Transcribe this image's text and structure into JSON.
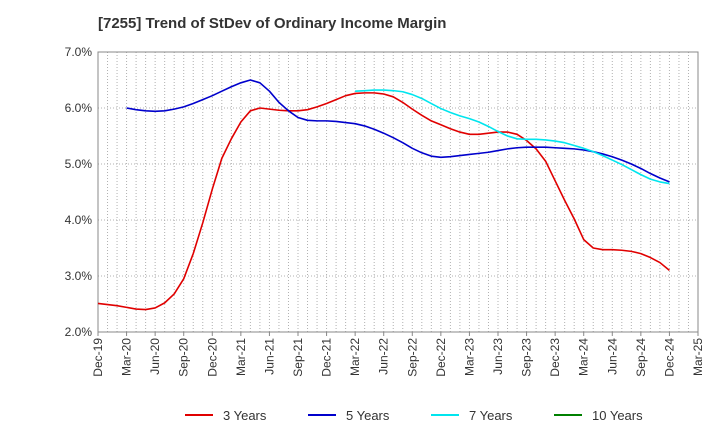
{
  "chart_data": {
    "type": "line",
    "title": "[7255]  Trend of StDev of Ordinary Income Margin",
    "xlabel": "",
    "ylabel": "",
    "ylim": [
      2.0,
      7.0
    ],
    "y_ticks": [
      "2.0%",
      "3.0%",
      "4.0%",
      "5.0%",
      "6.0%",
      "7.0%"
    ],
    "x_ticks": [
      "Dec-19",
      "Mar-20",
      "Jun-20",
      "Sep-20",
      "Dec-20",
      "Mar-21",
      "Jun-21",
      "Sep-21",
      "Dec-21",
      "Mar-22",
      "Jun-22",
      "Sep-22",
      "Dec-22",
      "Mar-23",
      "Jun-23",
      "Sep-23",
      "Dec-23",
      "Mar-24",
      "Jun-24",
      "Sep-24",
      "Dec-24",
      "Mar-25"
    ],
    "grid": true,
    "legend_position": "bottom",
    "series": [
      {
        "name": "3 Years",
        "color": "#e00000",
        "points": [
          [
            "Dec-19",
            2.51
          ],
          [
            "Jan-20",
            2.49
          ],
          [
            "Feb-20",
            2.47
          ],
          [
            "Mar-20",
            2.44
          ],
          [
            "Apr-20",
            2.41
          ],
          [
            "May-20",
            2.4
          ],
          [
            "Jun-20",
            2.43
          ],
          [
            "Jul-20",
            2.52
          ],
          [
            "Aug-20",
            2.68
          ],
          [
            "Sep-20",
            2.95
          ],
          [
            "Oct-20",
            3.4
          ],
          [
            "Nov-20",
            3.95
          ],
          [
            "Dec-20",
            4.55
          ],
          [
            "Jan-21",
            5.1
          ],
          [
            "Feb-21",
            5.45
          ],
          [
            "Mar-21",
            5.75
          ],
          [
            "Apr-21",
            5.95
          ],
          [
            "May-21",
            6.0
          ],
          [
            "Jun-21",
            5.98
          ],
          [
            "Jul-21",
            5.96
          ],
          [
            "Aug-21",
            5.95
          ],
          [
            "Sep-21",
            5.95
          ],
          [
            "Oct-21",
            5.97
          ],
          [
            "Nov-21",
            6.02
          ],
          [
            "Dec-21",
            6.08
          ],
          [
            "Jan-22",
            6.15
          ],
          [
            "Feb-22",
            6.22
          ],
          [
            "Mar-22",
            6.26
          ],
          [
            "Apr-22",
            6.27
          ],
          [
            "May-22",
            6.27
          ],
          [
            "Jun-22",
            6.25
          ],
          [
            "Jul-22",
            6.2
          ],
          [
            "Aug-22",
            6.1
          ],
          [
            "Sep-22",
            5.98
          ],
          [
            "Oct-22",
            5.87
          ],
          [
            "Nov-22",
            5.77
          ],
          [
            "Dec-22",
            5.7
          ],
          [
            "Jan-23",
            5.63
          ],
          [
            "Feb-23",
            5.57
          ],
          [
            "Mar-23",
            5.53
          ],
          [
            "Apr-23",
            5.53
          ],
          [
            "May-23",
            5.55
          ],
          [
            "Jun-23",
            5.57
          ],
          [
            "Jul-23",
            5.57
          ],
          [
            "Aug-23",
            5.53
          ],
          [
            "Sep-23",
            5.42
          ],
          [
            "Oct-23",
            5.27
          ],
          [
            "Nov-23",
            5.05
          ],
          [
            "Dec-23",
            4.7
          ],
          [
            "Jan-24",
            4.35
          ],
          [
            "Feb-24",
            4.02
          ],
          [
            "Mar-24",
            3.65
          ],
          [
            "Apr-24",
            3.5
          ],
          [
            "May-24",
            3.47
          ],
          [
            "Jun-24",
            3.47
          ],
          [
            "Jul-24",
            3.46
          ],
          [
            "Aug-24",
            3.44
          ],
          [
            "Sep-24",
            3.4
          ],
          [
            "Oct-24",
            3.33
          ],
          [
            "Nov-24",
            3.24
          ],
          [
            "Dec-24",
            3.1
          ]
        ]
      },
      {
        "name": "5 Years",
        "color": "#0000cc",
        "points": [
          [
            "Mar-20",
            6.0
          ],
          [
            "Apr-20",
            5.97
          ],
          [
            "May-20",
            5.95
          ],
          [
            "Jun-20",
            5.94
          ],
          [
            "Jul-20",
            5.95
          ],
          [
            "Aug-20",
            5.98
          ],
          [
            "Sep-20",
            6.02
          ],
          [
            "Oct-20",
            6.08
          ],
          [
            "Nov-20",
            6.15
          ],
          [
            "Dec-20",
            6.22
          ],
          [
            "Jan-21",
            6.3
          ],
          [
            "Feb-21",
            6.38
          ],
          [
            "Mar-21",
            6.45
          ],
          [
            "Apr-21",
            6.5
          ],
          [
            "May-21",
            6.45
          ],
          [
            "Jun-21",
            6.3
          ],
          [
            "Jul-21",
            6.1
          ],
          [
            "Aug-21",
            5.95
          ],
          [
            "Sep-21",
            5.83
          ],
          [
            "Oct-21",
            5.78
          ],
          [
            "Nov-21",
            5.77
          ],
          [
            "Dec-21",
            5.77
          ],
          [
            "Jan-22",
            5.76
          ],
          [
            "Feb-22",
            5.74
          ],
          [
            "Mar-22",
            5.72
          ],
          [
            "Apr-22",
            5.68
          ],
          [
            "May-22",
            5.62
          ],
          [
            "Jun-22",
            5.55
          ],
          [
            "Jul-22",
            5.47
          ],
          [
            "Aug-22",
            5.38
          ],
          [
            "Sep-22",
            5.28
          ],
          [
            "Oct-22",
            5.2
          ],
          [
            "Nov-22",
            5.14
          ],
          [
            "Dec-22",
            5.12
          ],
          [
            "Jan-23",
            5.13
          ],
          [
            "Feb-23",
            5.15
          ],
          [
            "Mar-23",
            5.17
          ],
          [
            "Apr-23",
            5.19
          ],
          [
            "May-23",
            5.21
          ],
          [
            "Jun-23",
            5.24
          ],
          [
            "Jul-23",
            5.27
          ],
          [
            "Aug-23",
            5.29
          ],
          [
            "Sep-23",
            5.3
          ],
          [
            "Oct-23",
            5.3
          ],
          [
            "Nov-23",
            5.3
          ],
          [
            "Dec-23",
            5.29
          ],
          [
            "Jan-24",
            5.28
          ],
          [
            "Feb-24",
            5.27
          ],
          [
            "Mar-24",
            5.25
          ],
          [
            "Apr-24",
            5.22
          ],
          [
            "May-24",
            5.18
          ],
          [
            "Jun-24",
            5.13
          ],
          [
            "Jul-24",
            5.07
          ],
          [
            "Aug-24",
            5.0
          ],
          [
            "Sep-24",
            4.92
          ],
          [
            "Oct-24",
            4.83
          ],
          [
            "Nov-24",
            4.75
          ],
          [
            "Dec-24",
            4.68
          ]
        ]
      },
      {
        "name": "7 Years",
        "color": "#00e5ee",
        "points": [
          [
            "Mar-22",
            6.3
          ],
          [
            "Apr-22",
            6.31
          ],
          [
            "May-22",
            6.32
          ],
          [
            "Jun-22",
            6.32
          ],
          [
            "Jul-22",
            6.31
          ],
          [
            "Aug-22",
            6.29
          ],
          [
            "Sep-22",
            6.24
          ],
          [
            "Oct-22",
            6.17
          ],
          [
            "Nov-22",
            6.08
          ],
          [
            "Dec-22",
            5.99
          ],
          [
            "Jan-23",
            5.92
          ],
          [
            "Feb-23",
            5.86
          ],
          [
            "Mar-23",
            5.81
          ],
          [
            "Apr-23",
            5.75
          ],
          [
            "May-23",
            5.67
          ],
          [
            "Jun-23",
            5.58
          ],
          [
            "Jul-23",
            5.5
          ],
          [
            "Aug-23",
            5.45
          ],
          [
            "Sep-23",
            5.44
          ],
          [
            "Oct-23",
            5.44
          ],
          [
            "Nov-23",
            5.43
          ],
          [
            "Dec-23",
            5.41
          ],
          [
            "Jan-24",
            5.38
          ],
          [
            "Feb-24",
            5.33
          ],
          [
            "Mar-24",
            5.28
          ],
          [
            "Apr-24",
            5.22
          ],
          [
            "May-24",
            5.15
          ],
          [
            "Jun-24",
            5.07
          ],
          [
            "Jul-24",
            4.99
          ],
          [
            "Aug-24",
            4.9
          ],
          [
            "Sep-24",
            4.81
          ],
          [
            "Oct-24",
            4.73
          ],
          [
            "Nov-24",
            4.68
          ],
          [
            "Dec-24",
            4.65
          ]
        ]
      },
      {
        "name": "10 Years",
        "color": "#008000",
        "points": []
      }
    ]
  }
}
